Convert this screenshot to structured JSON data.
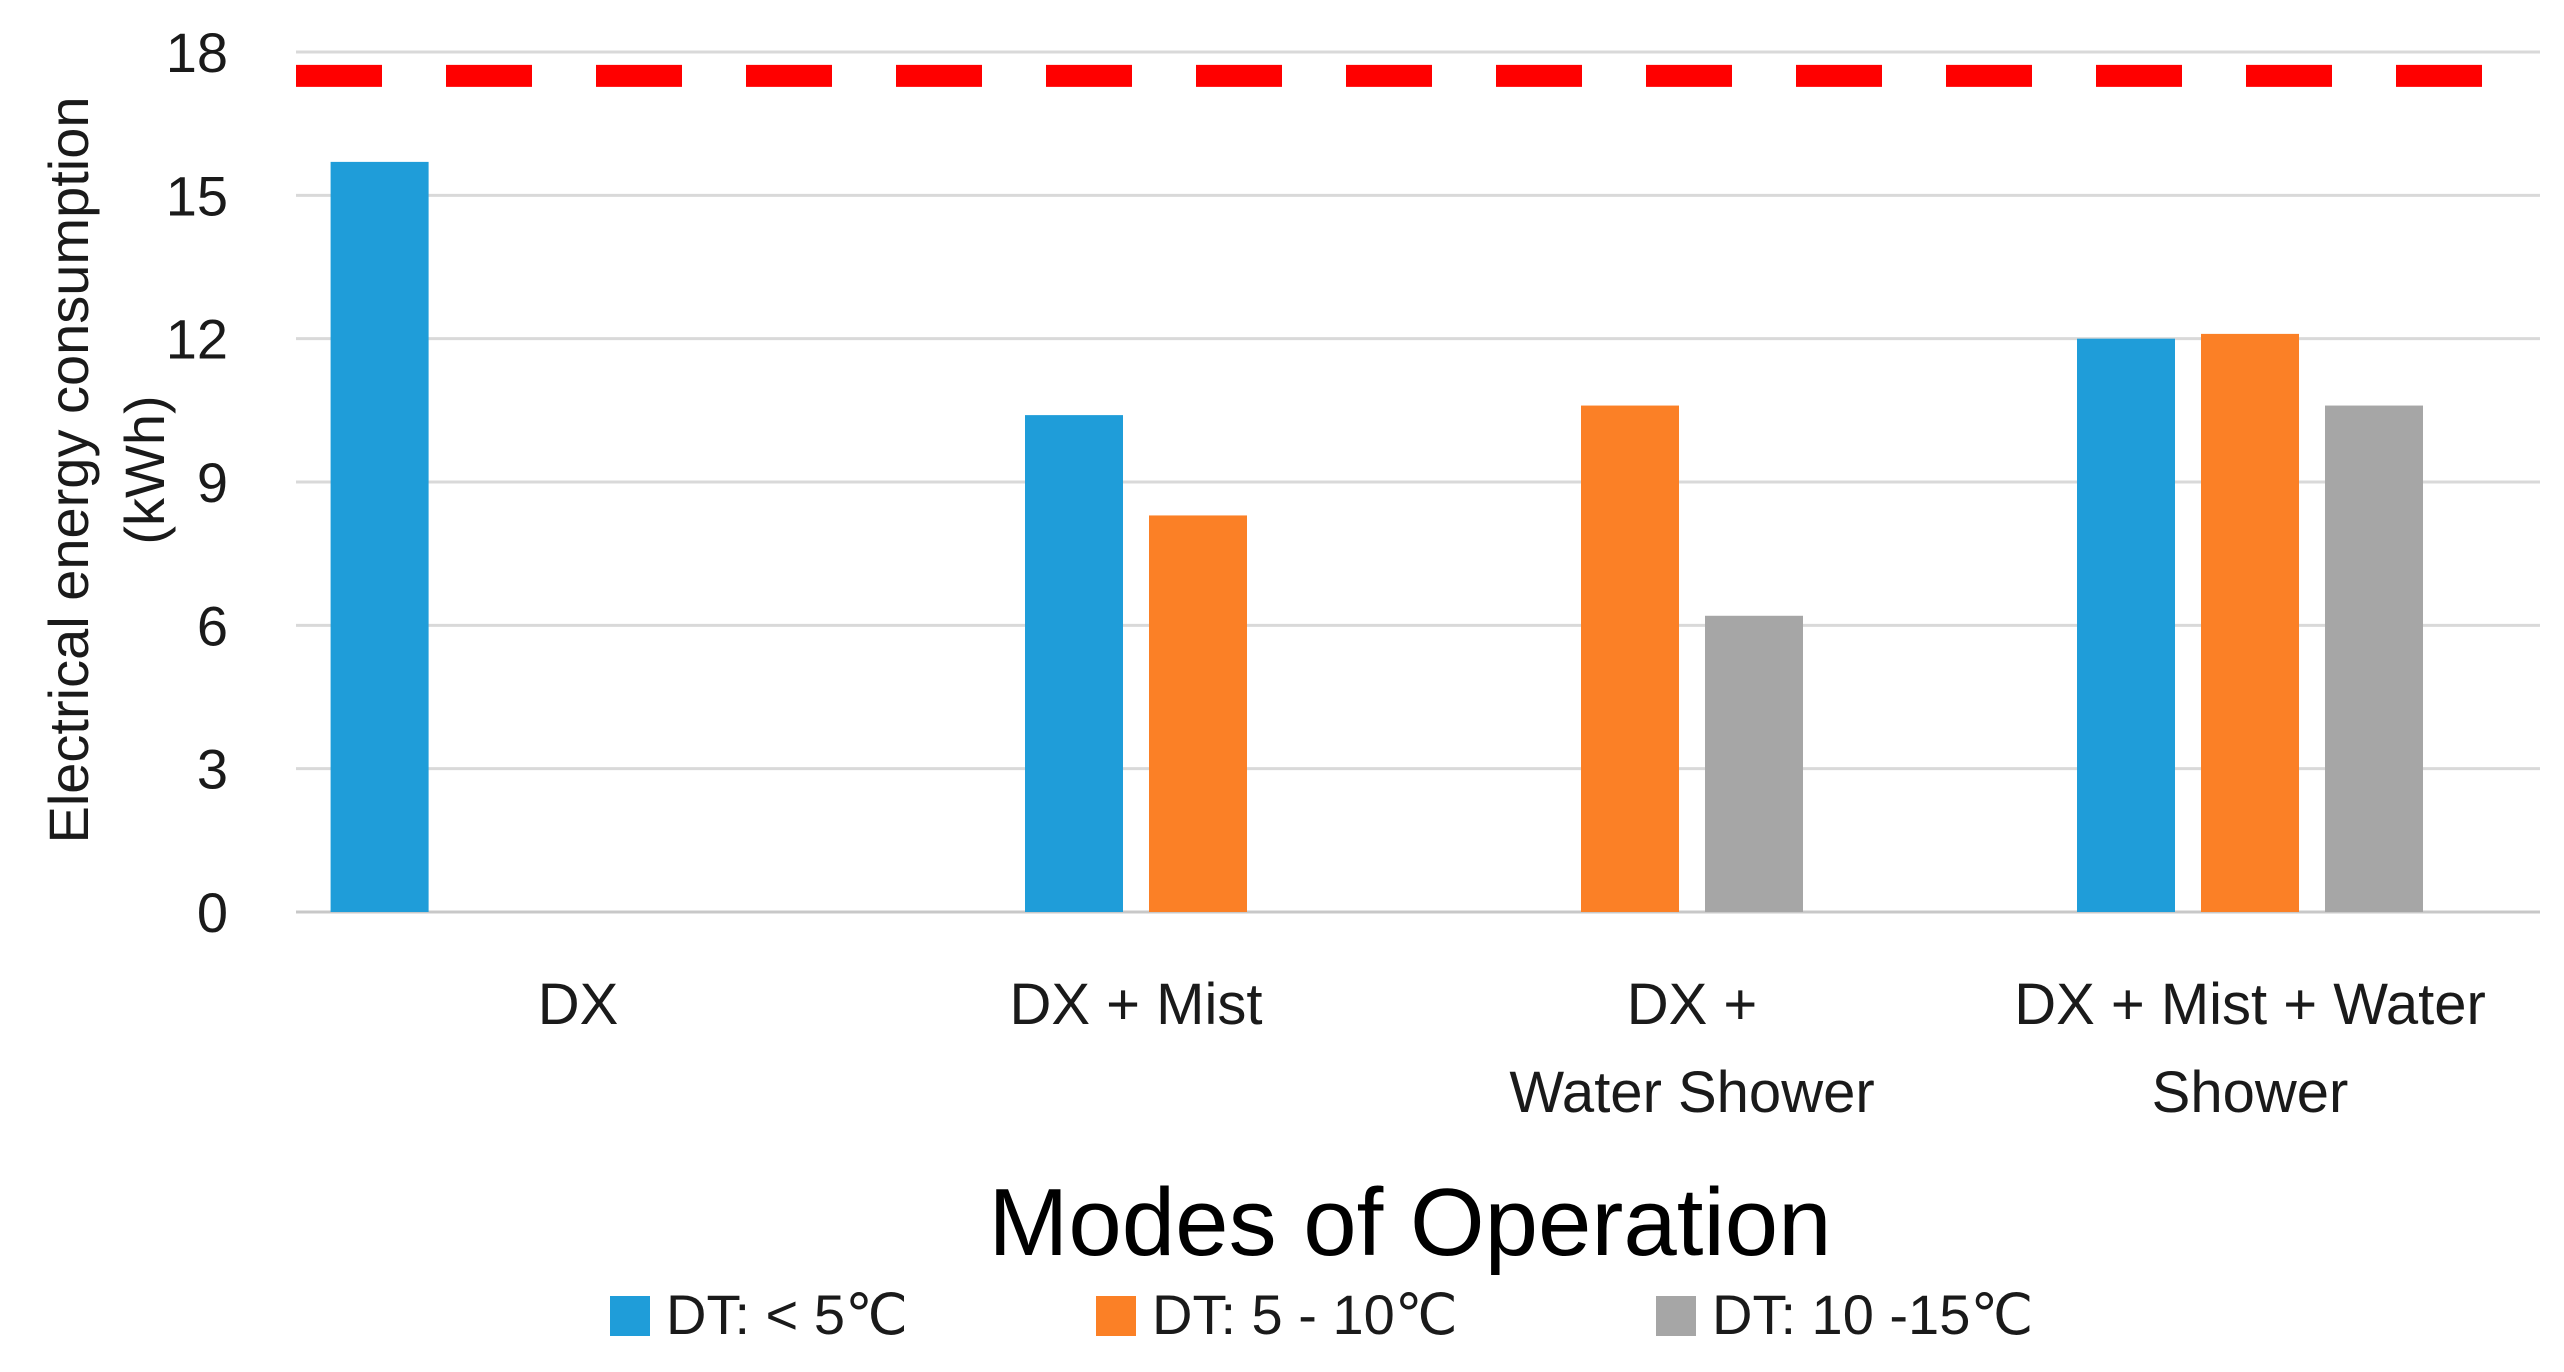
{
  "chart_data": {
    "type": "bar",
    "categories": [
      [
        "DX"
      ],
      [
        "DX + Mist"
      ],
      [
        "DX +",
        "Water Shower"
      ],
      [
        "DX + Mist + Water",
        "Shower"
      ]
    ],
    "series": [
      {
        "name": "DT: < 5℃",
        "color": "#1f9dd9",
        "values": [
          15.7,
          10.4,
          null,
          12.0
        ]
      },
      {
        "name": "DT: 5 - 10℃",
        "color": "#fb8026",
        "values": [
          null,
          8.3,
          10.6,
          12.1
        ]
      },
      {
        "name": "DT: 10 -15℃",
        "color": "#a6a6a6",
        "values": [
          null,
          null,
          6.2,
          10.6
        ]
      }
    ],
    "reference_line": {
      "value": 17.5,
      "color": "#ff0000",
      "style": "dashed"
    },
    "title": "",
    "xlabel": "Modes of Operation",
    "ylabel_lines": [
      "Electrical energy consumption",
      "(kWh)"
    ],
    "yticks": [
      0,
      3,
      6,
      9,
      12,
      15,
      18
    ],
    "ylim": [
      0,
      18
    ],
    "grid": true,
    "legend_position": "bottom"
  }
}
